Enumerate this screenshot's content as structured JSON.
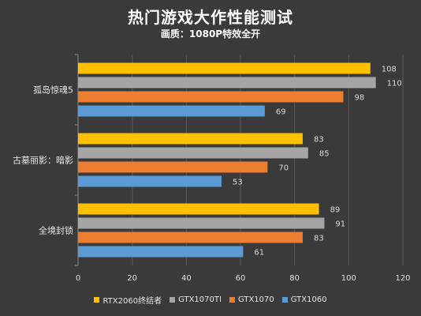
{
  "chart_data": {
    "type": "bar",
    "orientation": "horizontal",
    "title": "热门游戏大作性能测试",
    "subtitle": "画质：1080P特效全开",
    "categories": [
      "孤岛惊魂5",
      "古墓丽影：暗影",
      "全境封锁"
    ],
    "series": [
      {
        "name": "RTX2060终结者",
        "color": "#ffc000",
        "values": [
          108,
          83,
          89
        ]
      },
      {
        "name": "GTX1070TI",
        "color": "#a5a5a5",
        "values": [
          110,
          85,
          91
        ]
      },
      {
        "name": "GTX1070",
        "color": "#ed7d31",
        "values": [
          98,
          70,
          83
        ]
      },
      {
        "name": "GTX1060",
        "color": "#5b9bd5",
        "values": [
          69,
          53,
          61
        ]
      }
    ],
    "xlim": [
      0,
      120
    ],
    "xticks": [
      "0",
      "20",
      "40",
      "60",
      "80",
      "100",
      "120"
    ],
    "grid": true,
    "legend_position": "bottom"
  }
}
